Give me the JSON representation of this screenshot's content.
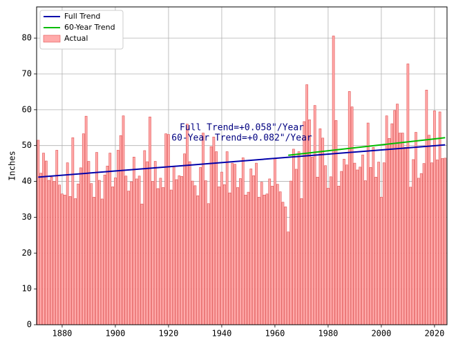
{
  "chart_data": {
    "type": "combo",
    "ylabel": "Inches",
    "annotations": [
      "Full Trend=+0.058\"/Year",
      "60-Year Trend=+0.082\"/Year"
    ],
    "xlim": [
      1870.4,
      2024.7
    ],
    "ylim": [
      0,
      88.7
    ],
    "xticks": [
      1880,
      1900,
      1920,
      1940,
      1960,
      1980,
      2000,
      2020
    ],
    "yticks": [
      0,
      10,
      20,
      30,
      40,
      50,
      60,
      70,
      80
    ],
    "grid": true,
    "legend": "upper left",
    "series": [
      {
        "name": "Full Trend",
        "kind": "line",
        "color": "#0000aa",
        "x": [
          1871,
          2024
        ],
        "values": [
          41.2,
          50.2
        ]
      },
      {
        "name": "60-Year Trend",
        "kind": "line",
        "color": "#00bb00",
        "x": [
          1965,
          2024
        ],
        "values": [
          47.3,
          52.2
        ]
      },
      {
        "name": "Actual",
        "kind": "bar",
        "color": "#ffaaaa",
        "edgecolor": "#e05050",
        "x": [
          1871,
          1872,
          1873,
          1874,
          1875,
          1876,
          1877,
          1878,
          1879,
          1880,
          1881,
          1882,
          1883,
          1884,
          1885,
          1886,
          1887,
          1888,
          1889,
          1890,
          1891,
          1892,
          1893,
          1894,
          1895,
          1896,
          1897,
          1898,
          1899,
          1900,
          1901,
          1902,
          1903,
          1904,
          1905,
          1906,
          1907,
          1908,
          1909,
          1910,
          1911,
          1912,
          1913,
          1914,
          1915,
          1916,
          1917,
          1918,
          1919,
          1920,
          1921,
          1922,
          1923,
          1924,
          1925,
          1926,
          1927,
          1928,
          1929,
          1930,
          1931,
          1932,
          1933,
          1934,
          1935,
          1936,
          1937,
          1938,
          1939,
          1940,
          1941,
          1942,
          1943,
          1944,
          1945,
          1946,
          1947,
          1948,
          1949,
          1950,
          1951,
          1952,
          1953,
          1954,
          1955,
          1956,
          1957,
          1958,
          1959,
          1960,
          1961,
          1962,
          1963,
          1964,
          1965,
          1966,
          1967,
          1968,
          1969,
          1970,
          1971,
          1972,
          1973,
          1974,
          1975,
          1976,
          1977,
          1978,
          1979,
          1980,
          1981,
          1982,
          1983,
          1984,
          1985,
          1986,
          1987,
          1988,
          1989,
          1990,
          1991,
          1992,
          1993,
          1994,
          1995,
          1996,
          1997,
          1998,
          1999,
          2000,
          2001,
          2002,
          2003,
          2004,
          2005,
          2006,
          2007,
          2008,
          2009,
          2010,
          2011,
          2012,
          2013,
          2014,
          2015,
          2016,
          2017,
          2018,
          2019,
          2020,
          2021,
          2022,
          2023,
          2024
        ],
        "values": [
          51.5,
          42.3,
          47.9,
          45.7,
          40.3,
          41.2,
          40.0,
          48.7,
          39.0,
          36.5,
          36.2,
          45.2,
          35.8,
          52.2,
          35.2,
          39.3,
          43.8,
          53.3,
          58.2,
          45.6,
          39.4,
          35.6,
          48.1,
          40.3,
          35.1,
          41.8,
          44.3,
          47.9,
          38.5,
          41.0,
          48.7,
          52.8,
          58.3,
          41.5,
          37.3,
          39.9,
          46.8,
          40.7,
          41.5,
          33.7,
          48.6,
          45.5,
          58.0,
          40.0,
          45.6,
          38.0,
          40.9,
          38.3,
          53.3,
          53.1,
          37.6,
          44.2,
          40.5,
          41.6,
          41.4,
          47.7,
          56.0,
          45.5,
          40.1,
          38.8,
          36.0,
          43.9,
          53.5,
          40.2,
          33.8,
          49.7,
          52.4,
          48.3,
          38.5,
          42.6,
          39.1,
          48.3,
          36.8,
          45.1,
          44.8,
          38.3,
          40.8,
          46.6,
          36.2,
          37.0,
          43.5,
          41.6,
          45.1,
          35.6,
          39.8,
          36.2,
          36.5,
          40.7,
          38.7,
          46.4,
          39.2,
          37.1,
          34.2,
          32.9,
          25.9,
          40.1,
          49.0,
          43.4,
          48.3,
          35.2,
          56.7,
          67.0,
          57.2,
          46.8,
          61.2,
          41.2,
          54.7,
          52.1,
          44.4,
          38.1,
          41.3,
          80.6,
          57.0,
          38.7,
          42.8,
          46.2,
          44.6,
          65.1,
          60.8,
          45.1,
          43.2,
          44.0,
          47.4,
          40.2,
          56.3,
          43.9,
          49.5,
          41.2,
          45.4,
          35.6,
          45.2,
          58.3,
          52.0,
          56.1,
          59.8,
          61.6,
          53.5,
          53.5,
          49.5,
          72.8,
          38.4,
          46.1,
          53.7,
          40.9,
          42.2,
          45.0,
          65.5,
          52.9,
          45.2,
          59.7,
          46.0,
          59.4,
          46.4,
          46.5
        ]
      }
    ]
  }
}
